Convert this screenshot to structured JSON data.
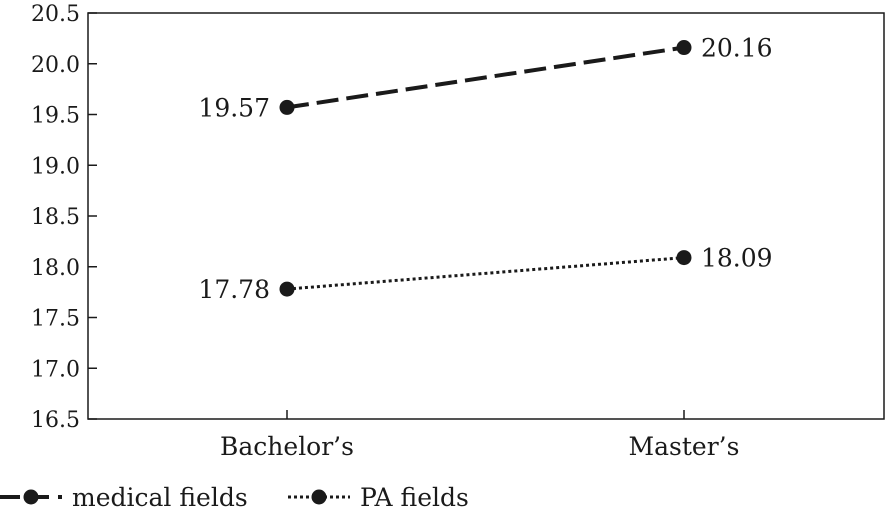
{
  "chart_data": {
    "type": "line",
    "categories": [
      "Bachelor’s",
      "Master’s"
    ],
    "series": [
      {
        "name": "medical fields",
        "values": [
          19.57,
          20.16
        ],
        "labels": [
          "19.57",
          "20.16"
        ],
        "style": "dashed"
      },
      {
        "name": "PA fields",
        "values": [
          17.78,
          18.09
        ],
        "labels": [
          "17.78",
          "18.09"
        ],
        "style": "dotted"
      }
    ],
    "yticks": [
      "20.5",
      "20.0",
      "19.5",
      "19.0",
      "18.5",
      "18.0",
      "17.5",
      "17.0",
      "16.5"
    ],
    "ylim": [
      16.5,
      20.5
    ],
    "title": "",
    "xlabel": "",
    "ylabel": "",
    "grid": false,
    "legend_position": "bottom-left",
    "line_color": "#1a1a1a"
  }
}
